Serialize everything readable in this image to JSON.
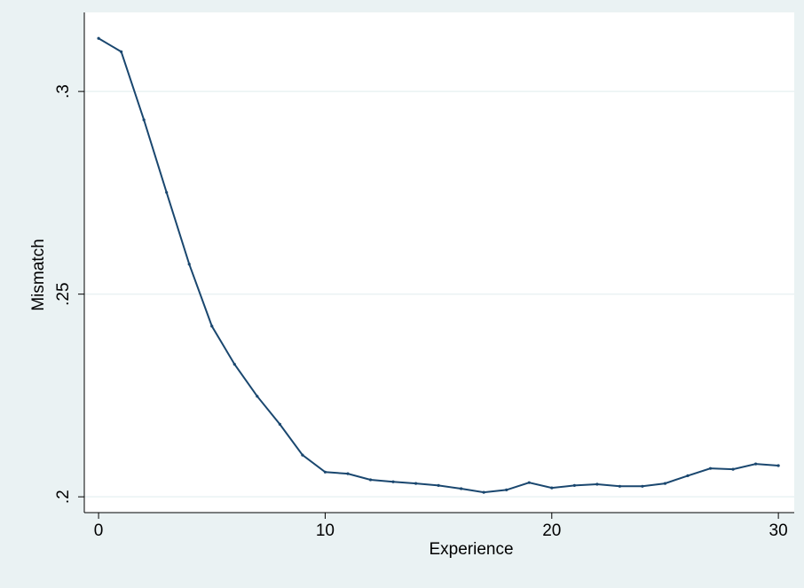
{
  "chart_data": {
    "type": "line",
    "x_label": "Experience",
    "y_label": "Mismatch",
    "x": [
      0,
      1,
      2,
      3,
      4,
      5,
      6,
      7,
      8,
      9,
      10,
      11,
      12,
      13,
      14,
      15,
      16,
      17,
      18,
      19,
      20,
      21,
      22,
      23,
      24,
      25,
      26,
      27,
      28,
      29,
      30
    ],
    "values": [
      0.3131,
      0.3098,
      0.293,
      0.2751,
      0.2574,
      0.2421,
      0.2327,
      0.2248,
      0.2179,
      0.2103,
      0.2061,
      0.2057,
      0.2042,
      0.2037,
      0.2033,
      0.2028,
      0.202,
      0.2011,
      0.2017,
      0.2035,
      0.2022,
      0.2028,
      0.2031,
      0.2026,
      0.2026,
      0.2033,
      0.2052,
      0.207,
      0.2068,
      0.2081,
      0.2077
    ],
    "color": "#1a476f",
    "xlim": [
      -0.63,
      30.7
    ],
    "ylim": [
      0.1961,
      0.3195
    ],
    "xticks": [
      0,
      10,
      20,
      30
    ],
    "yticks": [
      {
        "value": 0.2,
        "label": ".2"
      },
      {
        "value": 0.25,
        "label": ".25"
      },
      {
        "value": 0.3,
        "label": ".3"
      }
    ],
    "grid": true
  }
}
